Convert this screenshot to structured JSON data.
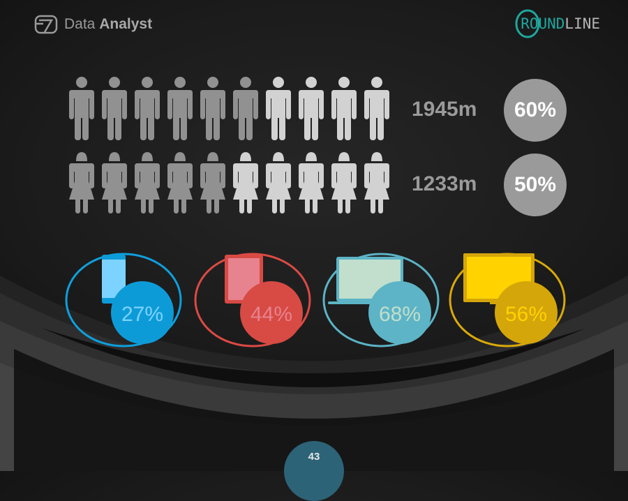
{
  "header": {
    "brand_light": "Data",
    "brand_bold": "Analyst",
    "logo_accent": "ROUND",
    "logo_rest": "LINE",
    "logo_color": "#1fa79e"
  },
  "men": {
    "total": 10,
    "highlighted": 6,
    "value": "1945m",
    "percent": "60%"
  },
  "women": {
    "total": 10,
    "highlighted": 5,
    "value": "1233m",
    "percent": "50%"
  },
  "colors": {
    "figure_dark": "#919191",
    "figure_light": "#d2d2d2"
  },
  "devices": [
    {
      "type": "smartphone-icon",
      "percent": "27%",
      "ring": "#0f9fdc",
      "fill": "#0d9bd8",
      "screen": "#7dd3ff",
      "text": "#7dd3ff"
    },
    {
      "type": "tablet-icon",
      "percent": "44%",
      "ring": "#dc4a44",
      "fill": "#d84a44",
      "screen": "#e6838e",
      "text": "#e6838e"
    },
    {
      "type": "laptop-icon",
      "percent": "68%",
      "ring": "#5bb3c6",
      "fill": "#5db4c6",
      "screen": "#c1dfcc",
      "text": "#c1dfcc"
    },
    {
      "type": "monitor-icon",
      "percent": "56%",
      "ring": "#d9a90a",
      "fill": "#d5a60a",
      "screen": "#ffd200",
      "text": "#ffd200"
    }
  ],
  "page_number": "43"
}
